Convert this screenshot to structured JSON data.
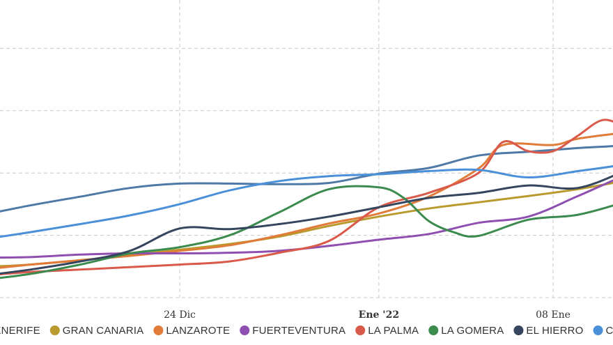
{
  "chart_data": {
    "type": "line",
    "x_axis": {
      "unit": "day",
      "range": [
        "2021-12-08",
        "2022-01-12"
      ],
      "ticks": [
        {
          "date": "2021-12-24",
          "label": "24 Dic",
          "bold": false
        },
        {
          "date": "2022-01-01",
          "label": "Ene '22",
          "bold": true
        },
        {
          "date": "2022-01-08",
          "label": "08 Ene",
          "bold": false
        }
      ]
    },
    "y_axis": {
      "range": [
        0,
        5
      ],
      "gridlines": [
        0,
        1,
        2,
        3,
        4,
        5
      ],
      "tick_labels_visible": false
    },
    "grid": true,
    "legend_placement": "bottom",
    "series": [
      {
        "name": "TENERIFE",
        "color": "#4e79a7",
        "points": [
          [
            "2021-12-08",
            0.72
          ],
          [
            "2021-12-10",
            0.87
          ],
          [
            "2021-12-12",
            1.02
          ],
          [
            "2021-12-14",
            1.15
          ],
          [
            "2021-12-16",
            1.32
          ],
          [
            "2021-12-18",
            1.48
          ],
          [
            "2021-12-20",
            1.62
          ],
          [
            "2021-12-22",
            1.76
          ],
          [
            "2021-12-24",
            1.83
          ],
          [
            "2021-12-26",
            1.83
          ],
          [
            "2021-12-28",
            1.82
          ],
          [
            "2021-12-30",
            1.84
          ],
          [
            "2022-01-01",
            1.99
          ],
          [
            "2022-01-03",
            2.08
          ],
          [
            "2022-01-05",
            2.28
          ],
          [
            "2022-01-07",
            2.34
          ],
          [
            "2022-01-09",
            2.4
          ],
          [
            "2022-01-11",
            2.45
          ],
          [
            "2022-01-12",
            2.53
          ]
        ]
      },
      {
        "name": "GRAN CANARIA",
        "color": "#b89a2f",
        "points": [
          [
            "2021-12-08",
            0.4
          ],
          [
            "2021-12-10",
            0.4
          ],
          [
            "2021-12-12",
            0.43
          ],
          [
            "2021-12-14",
            0.45
          ],
          [
            "2021-12-16",
            0.49
          ],
          [
            "2021-12-18",
            0.53
          ],
          [
            "2021-12-20",
            0.6
          ],
          [
            "2021-12-22",
            0.68
          ],
          [
            "2021-12-24",
            0.77
          ],
          [
            "2021-12-26",
            0.86
          ],
          [
            "2021-12-28",
            0.98
          ],
          [
            "2021-12-30",
            1.15
          ],
          [
            "2022-01-01",
            1.3
          ],
          [
            "2022-01-03",
            1.43
          ],
          [
            "2022-01-05",
            1.53
          ],
          [
            "2022-01-07",
            1.63
          ],
          [
            "2022-01-09",
            1.74
          ],
          [
            "2022-01-11",
            1.89
          ],
          [
            "2022-01-12",
            2.0
          ]
        ]
      },
      {
        "name": "LANZAROTE",
        "color": "#e07b39",
        "points": [
          [
            "2021-12-08",
            0.31
          ],
          [
            "2021-12-10",
            0.33
          ],
          [
            "2021-12-12",
            0.37
          ],
          [
            "2021-12-14",
            0.4
          ],
          [
            "2021-12-16",
            0.45
          ],
          [
            "2021-12-18",
            0.53
          ],
          [
            "2021-12-20",
            0.6
          ],
          [
            "2021-12-22",
            0.67
          ],
          [
            "2021-12-24",
            0.75
          ],
          [
            "2021-12-26",
            0.84
          ],
          [
            "2021-12-28",
            1.0
          ],
          [
            "2021-12-30",
            1.19
          ],
          [
            "2022-01-01",
            1.35
          ],
          [
            "2022-01-03",
            1.62
          ],
          [
            "2022-01-05",
            2.07
          ],
          [
            "2022-01-06",
            2.45
          ],
          [
            "2022-01-08",
            2.45
          ],
          [
            "2022-01-09",
            2.55
          ],
          [
            "2022-01-11",
            2.65
          ],
          [
            "2022-01-12",
            2.65
          ]
        ]
      },
      {
        "name": "FUERTEVENTURA",
        "color": "#8e4fb0",
        "points": [
          [
            "2021-12-08",
            0.6
          ],
          [
            "2021-12-10",
            0.6
          ],
          [
            "2021-12-12",
            0.61
          ],
          [
            "2021-12-14",
            0.63
          ],
          [
            "2021-12-16",
            0.64
          ],
          [
            "2021-12-18",
            0.65
          ],
          [
            "2021-12-20",
            0.69
          ],
          [
            "2021-12-22",
            0.71
          ],
          [
            "2021-12-24",
            0.71
          ],
          [
            "2021-12-26",
            0.72
          ],
          [
            "2021-12-28",
            0.75
          ],
          [
            "2021-12-30",
            0.83
          ],
          [
            "2022-01-01",
            0.93
          ],
          [
            "2022-01-03",
            1.02
          ],
          [
            "2022-01-05",
            1.2
          ],
          [
            "2022-01-07",
            1.3
          ],
          [
            "2022-01-09",
            1.63
          ],
          [
            "2022-01-11",
            1.98
          ],
          [
            "2022-01-12",
            2.1
          ]
        ]
      },
      {
        "name": "LA PALMA",
        "color": "#d95a4a",
        "points": [
          [
            "2021-12-08",
            0.21
          ],
          [
            "2021-12-10",
            0.23
          ],
          [
            "2021-12-12",
            0.27
          ],
          [
            "2021-12-14",
            0.29
          ],
          [
            "2021-12-16",
            0.35
          ],
          [
            "2021-12-18",
            0.41
          ],
          [
            "2021-12-20",
            0.45
          ],
          [
            "2021-12-22",
            0.49
          ],
          [
            "2021-12-24",
            0.53
          ],
          [
            "2021-12-26",
            0.58
          ],
          [
            "2021-12-28",
            0.72
          ],
          [
            "2021-12-30",
            0.91
          ],
          [
            "2022-01-01",
            1.45
          ],
          [
            "2022-01-03",
            1.68
          ],
          [
            "2022-01-05",
            2.0
          ],
          [
            "2022-01-06",
            2.5
          ],
          [
            "2022-01-07",
            2.35
          ],
          [
            "2022-01-08",
            2.35
          ],
          [
            "2022-01-09",
            2.6
          ],
          [
            "2022-01-10",
            2.85
          ],
          [
            "2022-01-11",
            2.75
          ],
          [
            "2022-01-12",
            2.8
          ]
        ]
      },
      {
        "name": "LA GOMERA",
        "color": "#3b8a4e",
        "points": [
          [
            "2021-12-08",
            0.12
          ],
          [
            "2021-12-10",
            0.12
          ],
          [
            "2021-12-12",
            0.14
          ],
          [
            "2021-12-14",
            0.18
          ],
          [
            "2021-12-16",
            0.28
          ],
          [
            "2021-12-18",
            0.38
          ],
          [
            "2021-12-20",
            0.53
          ],
          [
            "2021-12-22",
            0.71
          ],
          [
            "2021-12-24",
            0.81
          ],
          [
            "2021-12-26",
            1.0
          ],
          [
            "2021-12-28",
            1.37
          ],
          [
            "2021-12-30",
            1.74
          ],
          [
            "2022-01-01",
            1.77
          ],
          [
            "2022-01-02",
            1.6
          ],
          [
            "2022-01-03",
            1.23
          ],
          [
            "2022-01-04",
            1.05
          ],
          [
            "2022-01-05",
            0.99
          ],
          [
            "2022-01-07",
            1.25
          ],
          [
            "2022-01-09",
            1.33
          ],
          [
            "2022-01-11",
            1.55
          ],
          [
            "2022-01-12",
            1.7
          ]
        ]
      },
      {
        "name": "EL HIERRO",
        "color": "#35455e",
        "points": [
          [
            "2021-12-08",
            0.2
          ],
          [
            "2021-12-10",
            0.21
          ],
          [
            "2021-12-12",
            0.25
          ],
          [
            "2021-12-14",
            0.27
          ],
          [
            "2021-12-16",
            0.35
          ],
          [
            "2021-12-18",
            0.45
          ],
          [
            "2021-12-20",
            0.58
          ],
          [
            "2021-12-22",
            0.75
          ],
          [
            "2021-12-24",
            1.11
          ],
          [
            "2021-12-26",
            1.1
          ],
          [
            "2021-12-28",
            1.18
          ],
          [
            "2021-12-30",
            1.3
          ],
          [
            "2022-01-01",
            1.45
          ],
          [
            "2022-01-03",
            1.6
          ],
          [
            "2022-01-05",
            1.68
          ],
          [
            "2022-01-07",
            1.8
          ],
          [
            "2022-01-09",
            1.76
          ],
          [
            "2022-01-11",
            2.05
          ],
          [
            "2022-01-12",
            2.2
          ]
        ]
      },
      {
        "name": "CANARIAS",
        "color": "#4a90d9",
        "points": [
          [
            "2021-12-08",
            0.45
          ],
          [
            "2021-12-10",
            0.56
          ],
          [
            "2021-12-12",
            0.68
          ],
          [
            "2021-12-14",
            0.81
          ],
          [
            "2021-12-16",
            0.93
          ],
          [
            "2021-12-18",
            1.05
          ],
          [
            "2021-12-20",
            1.18
          ],
          [
            "2021-12-22",
            1.32
          ],
          [
            "2021-12-24",
            1.5
          ],
          [
            "2021-12-26",
            1.72
          ],
          [
            "2021-12-28",
            1.87
          ],
          [
            "2021-12-30",
            1.95
          ],
          [
            "2022-01-01",
            1.98
          ],
          [
            "2022-01-03",
            2.03
          ],
          [
            "2022-01-05",
            2.05
          ],
          [
            "2022-01-07",
            1.93
          ],
          [
            "2022-01-09",
            2.03
          ],
          [
            "2022-01-11",
            2.15
          ],
          [
            "2022-01-12",
            2.3
          ]
        ]
      }
    ]
  }
}
